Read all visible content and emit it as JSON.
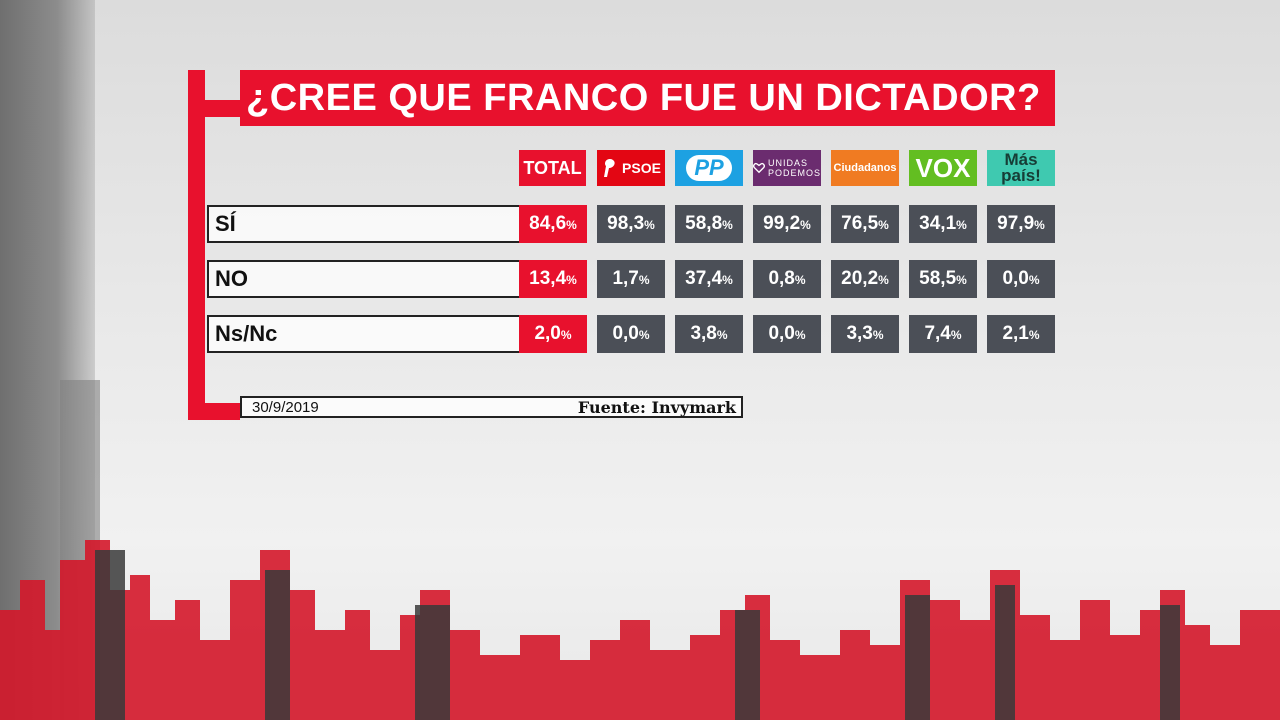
{
  "title": "¿CREE QUE FRANCO FUE UN DICTADOR?",
  "columns": {
    "total": "TOTAL",
    "psoe": "PSOE",
    "pp": "PP",
    "unidas_podemos": [
      "UNIDAS",
      "PODEMOS"
    ],
    "ciudadanos": "Ciudadanos",
    "vox": "VOX",
    "mas_pais": [
      "Más",
      "país!"
    ]
  },
  "rows": [
    {
      "label": "SÍ",
      "total": "84,6",
      "values": [
        "98,3",
        "58,8",
        "99,2",
        "76,5",
        "34,1",
        "97,9"
      ]
    },
    {
      "label": "NO",
      "total": "13,4",
      "values": [
        "1,7",
        "37,4",
        "0,8",
        "20,2",
        "58,5",
        "0,0"
      ]
    },
    {
      "label": "Ns/Nc",
      "total": "2,0",
      "values": [
        "0,0",
        "3,8",
        "0,0",
        "3,3",
        "7,4",
        "2,1"
      ]
    }
  ],
  "percent_symbol": "%",
  "date": "30/9/2019",
  "source": "Fuente: Invymark",
  "colors": {
    "accent": "#e8112d",
    "cell": "#4b4f57",
    "psoe": "#e30613",
    "pp": "#1da1e2",
    "unidas_podemos": "#6b2c6f",
    "ciudadanos": "#f07b22",
    "vox": "#63be21",
    "mas_pais": "#3fc9b0"
  },
  "chart_data": {
    "type": "table",
    "title": "¿CREE QUE FRANCO FUE UN DICTADOR?",
    "categories": [
      "SÍ",
      "NO",
      "Ns/Nc"
    ],
    "unit": "%",
    "series": [
      {
        "name": "TOTAL",
        "values": [
          84.6,
          13.4,
          2.0
        ]
      },
      {
        "name": "PSOE",
        "values": [
          98.3,
          1.7,
          0.0
        ]
      },
      {
        "name": "PP",
        "values": [
          58.8,
          37.4,
          3.8
        ]
      },
      {
        "name": "Unidas Podemos",
        "values": [
          99.2,
          0.8,
          0.0
        ]
      },
      {
        "name": "Ciudadanos",
        "values": [
          76.5,
          20.2,
          3.3
        ]
      },
      {
        "name": "VOX",
        "values": [
          34.1,
          58.5,
          7.4
        ]
      },
      {
        "name": "Más País",
        "values": [
          97.9,
          0.0,
          2.1
        ]
      }
    ]
  }
}
